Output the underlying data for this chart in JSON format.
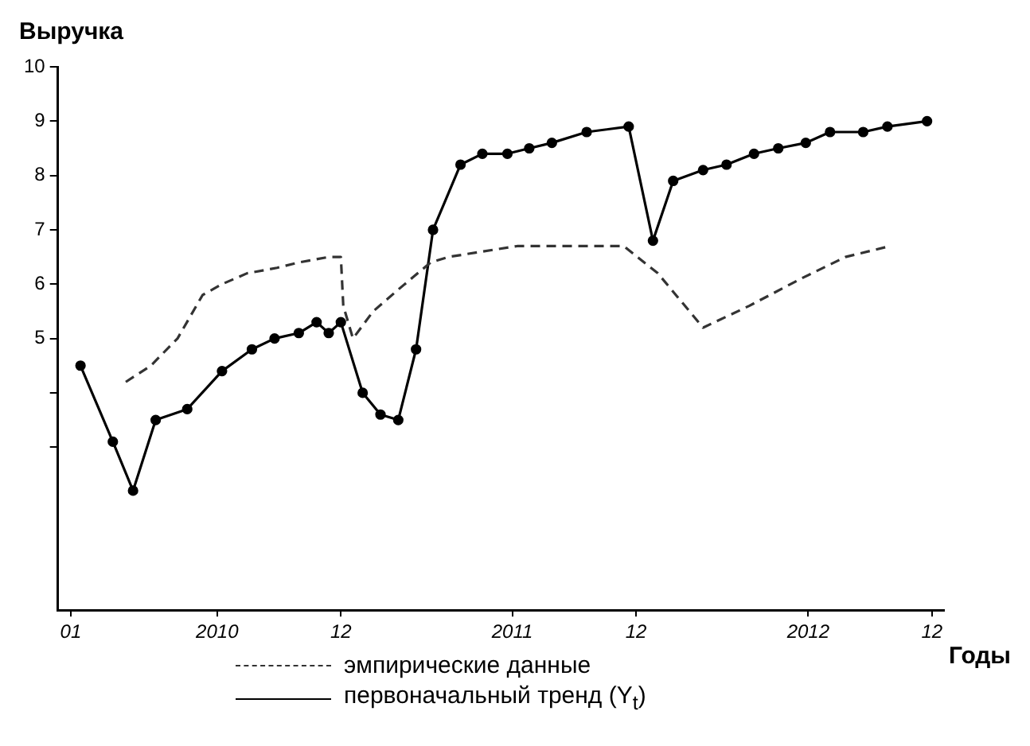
{
  "chart_data": {
    "type": "line",
    "ylabel": "Выручка",
    "xlabel": "Годы",
    "xlim": [
      "2009-12-16",
      "2012-12-16"
    ],
    "xticks": [
      {
        "value": "2010-01",
        "label": "01"
      },
      {
        "value": "2010-07",
        "label": "2010"
      },
      {
        "value": "2010-12",
        "label": "12"
      },
      {
        "value": "2011-07",
        "label": "2011"
      },
      {
        "value": "2011-12",
        "label": "12"
      },
      {
        "value": "2012-07",
        "label": "2012"
      },
      {
        "value": "2012-12",
        "label": "12"
      }
    ],
    "ylim": [
      0,
      10
    ],
    "yticks": [
      {
        "value": 3,
        "label": null
      },
      {
        "value": 4,
        "label": null
      },
      5,
      6,
      7,
      8,
      9,
      10
    ],
    "grid": false,
    "legend": "bottom",
    "series": [
      {
        "name": "эмпирические данные",
        "color": "#333333",
        "line_style": "dashed",
        "marker": "none",
        "x": [
          "2010-03-10",
          "2010-04-10",
          "2010-05-13",
          "2010-06-13",
          "2010-07-07",
          "2010-08-07",
          "2010-09-13",
          "2010-10-10",
          "2010-11-16",
          "2010-12-01",
          "2010-12-04",
          "2010-12-16",
          "2011-01-10",
          "2011-02-10",
          "2011-03-22",
          "2011-04-13",
          "2011-05-25",
          "2011-07-07",
          "2011-08-22",
          "2011-10-25",
          "2011-11-16",
          "2011-12-28",
          "2012-02-22",
          "2012-04-19",
          "2012-06-22",
          "2012-08-16",
          "2012-10-10"
        ],
        "values": [
          4.2,
          4.5,
          5.0,
          5.8,
          6.0,
          6.2,
          6.3,
          6.4,
          6.5,
          6.5,
          5.6,
          5.0,
          5.5,
          5.9,
          6.4,
          6.5,
          6.6,
          6.7,
          6.7,
          6.7,
          6.7,
          6.2,
          5.2,
          5.6,
          6.1,
          6.5,
          6.7
        ]
      },
      {
        "name": "первоначальный тренд (Y$_{t}$)",
        "color": "#000000",
        "line_style": "solid",
        "marker": "circle",
        "x": [
          "2010-01-13",
          "2010-02-22",
          "2010-03-19",
          "2010-04-16",
          "2010-05-25",
          "2010-07-07",
          "2010-08-13",
          "2010-09-10",
          "2010-10-10",
          "2010-11-01",
          "2010-11-16",
          "2010-12-01",
          "2010-12-28",
          "2011-01-19",
          "2011-02-10",
          "2011-03-04",
          "2011-03-25",
          "2011-04-28",
          "2011-05-25",
          "2011-06-25",
          "2011-07-22",
          "2011-08-19",
          "2011-10-01",
          "2011-11-22",
          "2011-12-22",
          "2012-01-16",
          "2012-02-22",
          "2012-03-22",
          "2012-04-25",
          "2012-05-25",
          "2012-06-28",
          "2012-07-28",
          "2012-09-07",
          "2012-10-07",
          "2012-11-25"
        ],
        "values": [
          4.5,
          3.1,
          2.2,
          3.5,
          3.7,
          4.4,
          4.8,
          5.0,
          5.1,
          5.3,
          5.1,
          5.3,
          4.0,
          3.6,
          3.5,
          4.8,
          7.0,
          8.2,
          8.4,
          8.4,
          8.5,
          8.6,
          8.8,
          8.9,
          6.8,
          7.9,
          8.1,
          8.2,
          8.4,
          8.5,
          8.6,
          8.8,
          8.8,
          8.9,
          9.0
        ]
      }
    ]
  }
}
